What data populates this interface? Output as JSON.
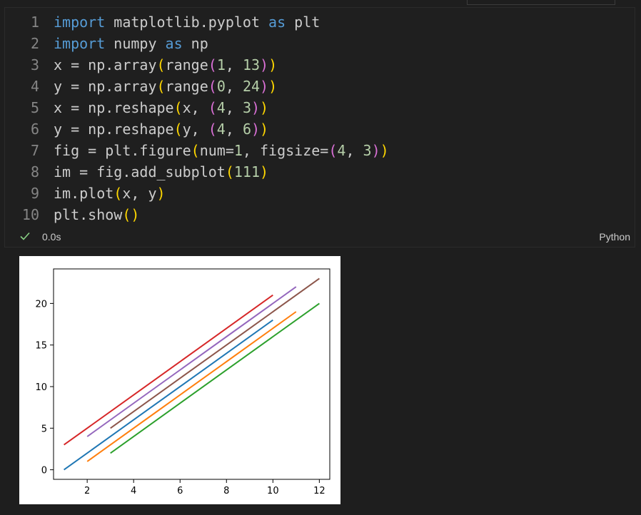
{
  "code_lines": [
    {
      "num": "1",
      "tokens": [
        {
          "t": "import",
          "c": "kw"
        },
        {
          "t": " matplotlib.pyplot ",
          "c": "id"
        },
        {
          "t": "as",
          "c": "kw"
        },
        {
          "t": " plt",
          "c": "id"
        }
      ]
    },
    {
      "num": "2",
      "tokens": [
        {
          "t": "import",
          "c": "kw"
        },
        {
          "t": " numpy ",
          "c": "id"
        },
        {
          "t": "as",
          "c": "kw"
        },
        {
          "t": " np",
          "c": "id"
        }
      ]
    },
    {
      "num": "3",
      "tokens": [
        {
          "t": "x = np.array",
          "c": "id"
        },
        {
          "t": "(",
          "c": "b1"
        },
        {
          "t": "range",
          "c": "id"
        },
        {
          "t": "(",
          "c": "b2"
        },
        {
          "t": "1",
          "c": "num"
        },
        {
          "t": ", ",
          "c": "id"
        },
        {
          "t": "13",
          "c": "num"
        },
        {
          "t": ")",
          "c": "b2"
        },
        {
          "t": ")",
          "c": "b1"
        }
      ]
    },
    {
      "num": "4",
      "tokens": [
        {
          "t": "y = np.array",
          "c": "id"
        },
        {
          "t": "(",
          "c": "b1"
        },
        {
          "t": "range",
          "c": "id"
        },
        {
          "t": "(",
          "c": "b2"
        },
        {
          "t": "0",
          "c": "num"
        },
        {
          "t": ", ",
          "c": "id"
        },
        {
          "t": "24",
          "c": "num"
        },
        {
          "t": ")",
          "c": "b2"
        },
        {
          "t": ")",
          "c": "b1"
        }
      ]
    },
    {
      "num": "5",
      "tokens": [
        {
          "t": "x = np.reshape",
          "c": "id"
        },
        {
          "t": "(",
          "c": "b1"
        },
        {
          "t": "x, ",
          "c": "id"
        },
        {
          "t": "(",
          "c": "b2"
        },
        {
          "t": "4",
          "c": "num"
        },
        {
          "t": ", ",
          "c": "id"
        },
        {
          "t": "3",
          "c": "num"
        },
        {
          "t": ")",
          "c": "b2"
        },
        {
          "t": ")",
          "c": "b1"
        }
      ]
    },
    {
      "num": "6",
      "tokens": [
        {
          "t": "y = np.reshape",
          "c": "id"
        },
        {
          "t": "(",
          "c": "b1"
        },
        {
          "t": "y, ",
          "c": "id"
        },
        {
          "t": "(",
          "c": "b2"
        },
        {
          "t": "4",
          "c": "num"
        },
        {
          "t": ", ",
          "c": "id"
        },
        {
          "t": "6",
          "c": "num"
        },
        {
          "t": ")",
          "c": "b2"
        },
        {
          "t": ")",
          "c": "b1"
        }
      ]
    },
    {
      "num": "7",
      "tokens": [
        {
          "t": "fig = plt.figure",
          "c": "id"
        },
        {
          "t": "(",
          "c": "b1"
        },
        {
          "t": "num=",
          "c": "id"
        },
        {
          "t": "1",
          "c": "num"
        },
        {
          "t": ", figsize=",
          "c": "id"
        },
        {
          "t": "(",
          "c": "b2"
        },
        {
          "t": "4",
          "c": "num"
        },
        {
          "t": ", ",
          "c": "id"
        },
        {
          "t": "3",
          "c": "num"
        },
        {
          "t": ")",
          "c": "b2"
        },
        {
          "t": ")",
          "c": "b1"
        }
      ]
    },
    {
      "num": "8",
      "tokens": [
        {
          "t": "im = fig.add_subplot",
          "c": "id"
        },
        {
          "t": "(",
          "c": "b1"
        },
        {
          "t": "111",
          "c": "num"
        },
        {
          "t": ")",
          "c": "b1"
        }
      ]
    },
    {
      "num": "9",
      "tokens": [
        {
          "t": "im.plot",
          "c": "id"
        },
        {
          "t": "(",
          "c": "b1"
        },
        {
          "t": "x, y",
          "c": "id"
        },
        {
          "t": ")",
          "c": "b1"
        }
      ]
    },
    {
      "num": "10",
      "tokens": [
        {
          "t": "plt.show",
          "c": "id"
        },
        {
          "t": "(",
          "c": "b1"
        },
        {
          "t": ")",
          "c": "b1"
        }
      ]
    }
  ],
  "cell_status": {
    "check_icon": "check-icon",
    "exec_time": "0.0s",
    "language": "Python",
    "check_color": "#89d185"
  },
  "chart_data": {
    "type": "line",
    "title": "",
    "xlabel": "",
    "ylabel": "",
    "xlim": [
      0.55,
      12.45
    ],
    "ylim": [
      -1.15,
      24.15
    ],
    "xticks": [
      2,
      4,
      6,
      8,
      10,
      12
    ],
    "yticks": [
      0,
      5,
      10,
      15,
      20
    ],
    "grid": false,
    "series": [
      {
        "color": "#1f77b4",
        "x": [
          1,
          4,
          7,
          10
        ],
        "y": [
          0,
          6,
          12,
          18
        ]
      },
      {
        "color": "#ff7f0e",
        "x": [
          2,
          5,
          8,
          11
        ],
        "y": [
          1,
          7,
          13,
          19
        ]
      },
      {
        "color": "#2ca02c",
        "x": [
          3,
          6,
          9,
          12
        ],
        "y": [
          2,
          8,
          14,
          20
        ]
      },
      {
        "color": "#d62728",
        "x": [
          1,
          4,
          7,
          10
        ],
        "y": [
          3,
          9,
          15,
          21
        ]
      },
      {
        "color": "#9467bd",
        "x": [
          2,
          5,
          8,
          11
        ],
        "y": [
          4,
          10,
          16,
          22
        ]
      },
      {
        "color": "#8c564b",
        "x": [
          3,
          6,
          9,
          12
        ],
        "y": [
          5,
          11,
          17,
          23
        ]
      }
    ]
  }
}
